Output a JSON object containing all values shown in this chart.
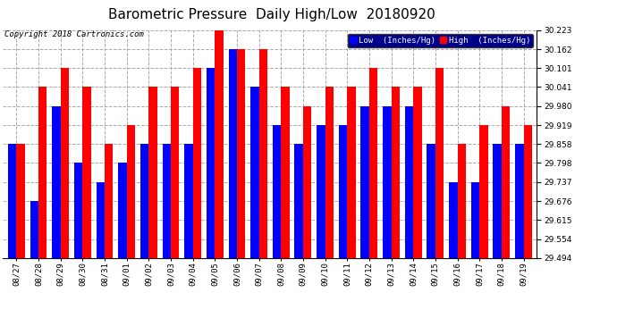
{
  "title": "Barometric Pressure  Daily High/Low  20180920",
  "copyright": "Copyright 2018 Cartronics.com",
  "legend_low": "Low  (Inches/Hg)",
  "legend_high": "High  (Inches/Hg)",
  "categories": [
    "08/27",
    "08/28",
    "08/29",
    "08/30",
    "08/31",
    "09/01",
    "09/02",
    "09/03",
    "09/04",
    "09/05",
    "09/06",
    "09/07",
    "09/08",
    "09/09",
    "09/10",
    "09/11",
    "09/12",
    "09/13",
    "09/14",
    "09/15",
    "09/16",
    "09/17",
    "09/18",
    "09/19"
  ],
  "low_values": [
    29.858,
    29.676,
    29.98,
    29.798,
    29.737,
    29.798,
    29.858,
    29.858,
    29.858,
    30.101,
    30.162,
    30.041,
    29.919,
    29.858,
    29.919,
    29.919,
    29.98,
    29.98,
    29.98,
    29.858,
    29.737,
    29.737,
    29.858,
    29.858
  ],
  "high_values": [
    29.858,
    30.041,
    30.101,
    30.041,
    29.858,
    29.919,
    30.041,
    30.041,
    30.101,
    30.223,
    30.162,
    30.162,
    30.041,
    29.98,
    30.041,
    30.041,
    30.101,
    30.041,
    30.041,
    30.101,
    29.858,
    29.919,
    29.98,
    29.919
  ],
  "low_color": "#0000FF",
  "high_color": "#FF0000",
  "background_color": "#FFFFFF",
  "plot_bg_color": "#FFFFFF",
  "grid_color": "#AAAAAA",
  "ylim_min": 29.494,
  "ylim_max": 30.223,
  "yticks": [
    29.494,
    29.554,
    29.615,
    29.676,
    29.737,
    29.798,
    29.858,
    29.919,
    29.98,
    30.041,
    30.101,
    30.162,
    30.223
  ],
  "title_fontsize": 11,
  "copyright_fontsize": 6.5,
  "tick_fontsize": 6.5,
  "legend_fontsize": 6.5,
  "bar_width": 0.38
}
